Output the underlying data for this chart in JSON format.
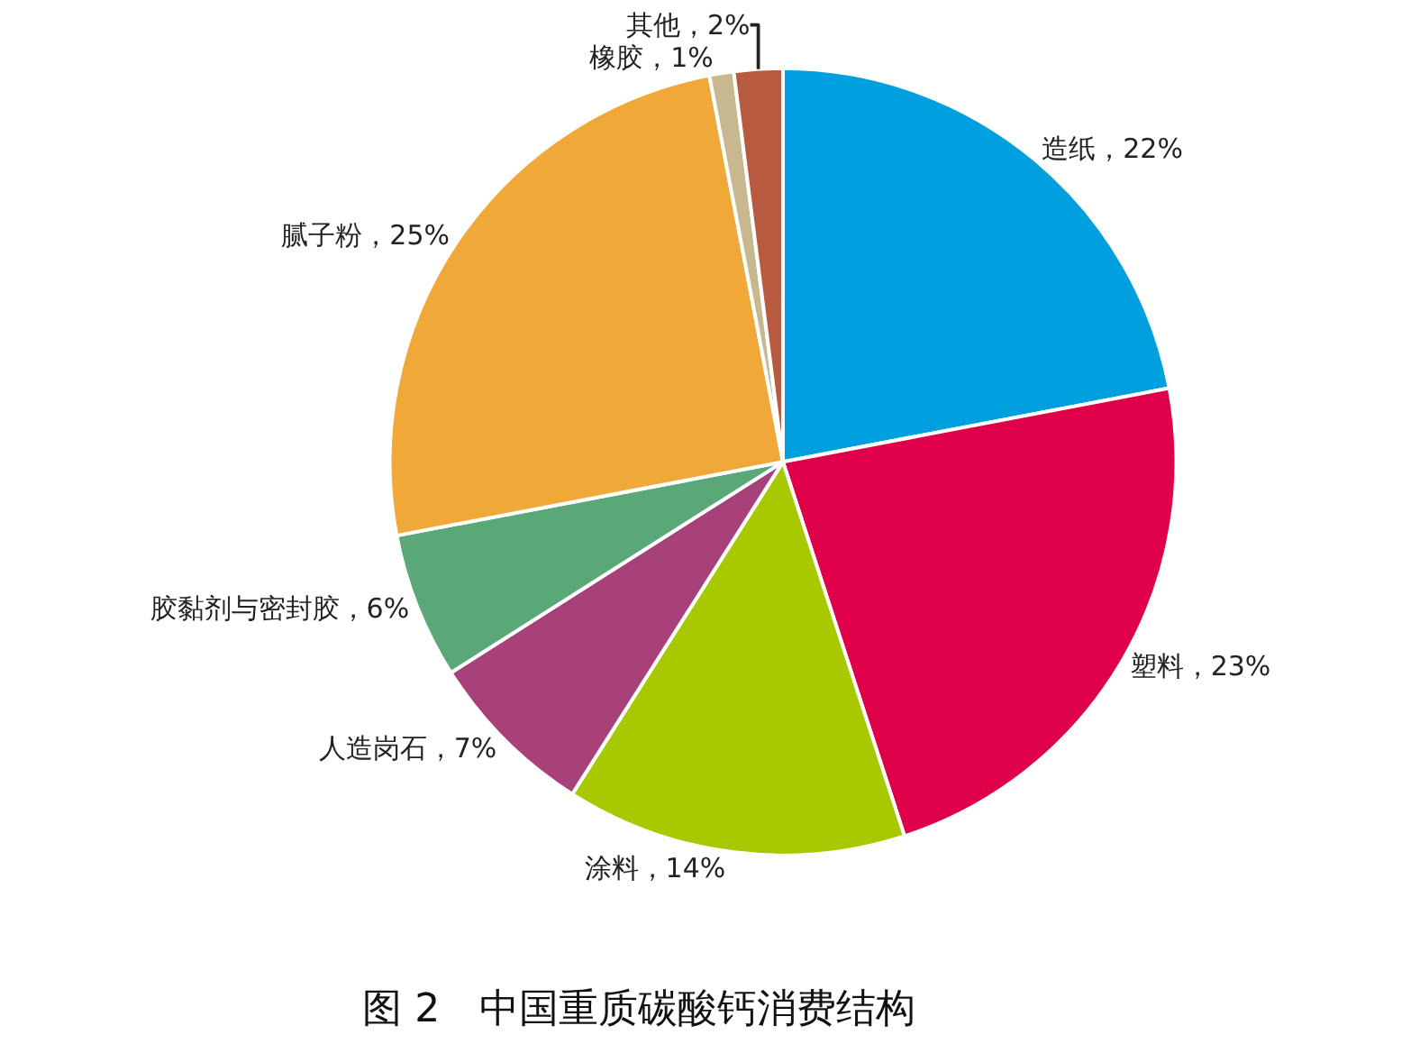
{
  "chart_data": {
    "type": "pie",
    "title": "图 2　中国重质碳酸钙消费结构",
    "categories": [
      "造纸",
      "塑料",
      "涂料",
      "人造岗石",
      "胶黏剂与密封胶",
      "腻子粉",
      "橡胶",
      "其他"
    ],
    "values": [
      22,
      23,
      14,
      7,
      6,
      25,
      1,
      2
    ],
    "value_labels": [
      "22%",
      "23%",
      "14%",
      "7%",
      "6%",
      "25%",
      "1%",
      "2%"
    ],
    "colors": [
      "#00a0e0",
      "#e0004a",
      "#a8c800",
      "#a8407a",
      "#5aa878",
      "#f0a838",
      "#c8b890",
      "#b85a40"
    ],
    "legend": false
  }
}
